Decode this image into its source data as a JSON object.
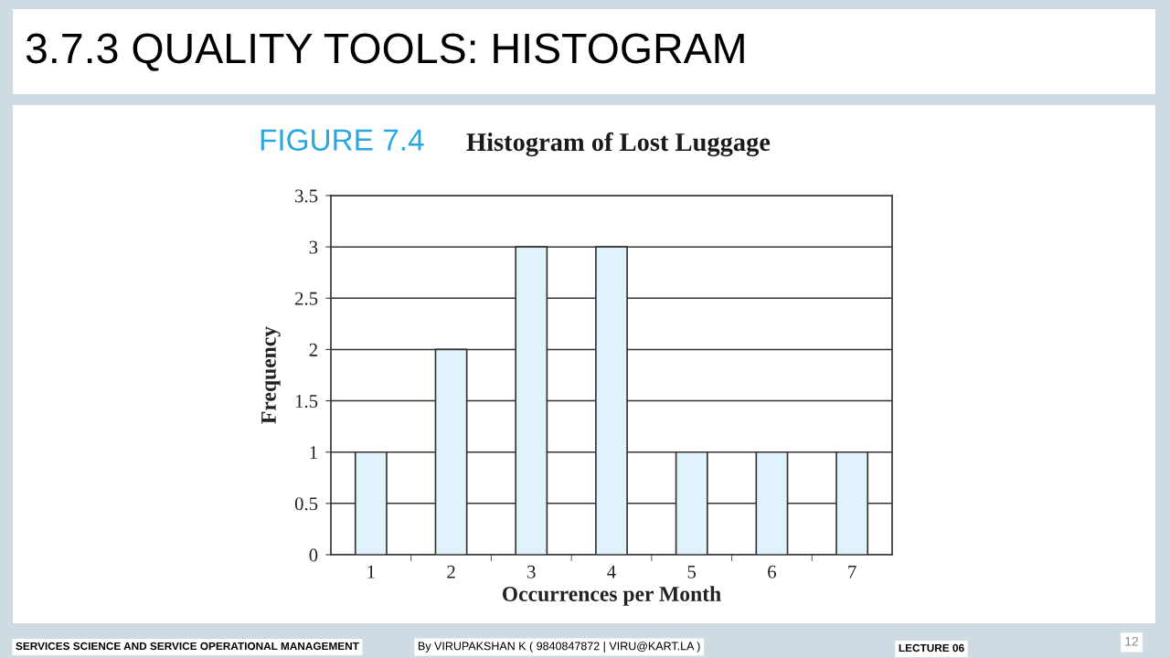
{
  "chart_data": {
    "type": "bar",
    "title": "Histogram of Lost Luggage",
    "xlabel": "Occurrences per Month",
    "ylabel": "Frequency",
    "categories": [
      "1",
      "2",
      "3",
      "4",
      "5",
      "6",
      "7"
    ],
    "values": [
      1,
      2,
      3,
      3,
      1,
      1,
      1
    ],
    "color": "#e0f2fc",
    "ylim": [
      0,
      3.5
    ],
    "yticks": [
      0,
      0.5,
      1,
      1.5,
      2,
      2.5,
      3,
      3.5
    ],
    "grid": "y",
    "annotations": [
      "3.7.3 QUALITY TOOLS: HISTOGRAM",
      "FIGURE 7.4",
      "SERVICES SCIENCE AND SERVICE OPERATIONAL MANAGEMENT",
      "By VIRUPAKSHAN K ( 9840847872 | VIRU@KART.LA )",
      "LECTURE 06",
      "12"
    ]
  }
}
